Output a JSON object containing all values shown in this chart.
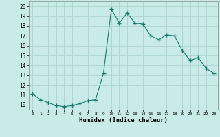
{
  "x": [
    0,
    1,
    2,
    3,
    4,
    5,
    6,
    7,
    8,
    9,
    10,
    11,
    12,
    13,
    14,
    15,
    16,
    17,
    18,
    19,
    20,
    21,
    22,
    23
  ],
  "y": [
    11.1,
    10.5,
    10.2,
    9.9,
    9.8,
    9.9,
    10.1,
    10.4,
    10.5,
    13.2,
    19.7,
    18.3,
    19.3,
    18.3,
    18.2,
    17.0,
    16.6,
    17.1,
    17.0,
    15.5,
    14.5,
    14.8,
    13.7,
    13.2
  ],
  "line_color": "#1a7a6e",
  "marker": "+",
  "bg_color": "#c8eae8",
  "grid_color": "#aad4d0",
  "xlabel": "Humidex (Indice chaleur)",
  "ylim": [
    9.5,
    20.5
  ],
  "xlim": [
    -0.5,
    23.5
  ],
  "yticks": [
    10,
    11,
    12,
    13,
    14,
    15,
    16,
    17,
    18,
    19,
    20
  ],
  "xticks": [
    0,
    1,
    2,
    3,
    4,
    5,
    6,
    7,
    8,
    9,
    10,
    11,
    12,
    13,
    14,
    15,
    16,
    17,
    18,
    19,
    20,
    21,
    22,
    23
  ]
}
